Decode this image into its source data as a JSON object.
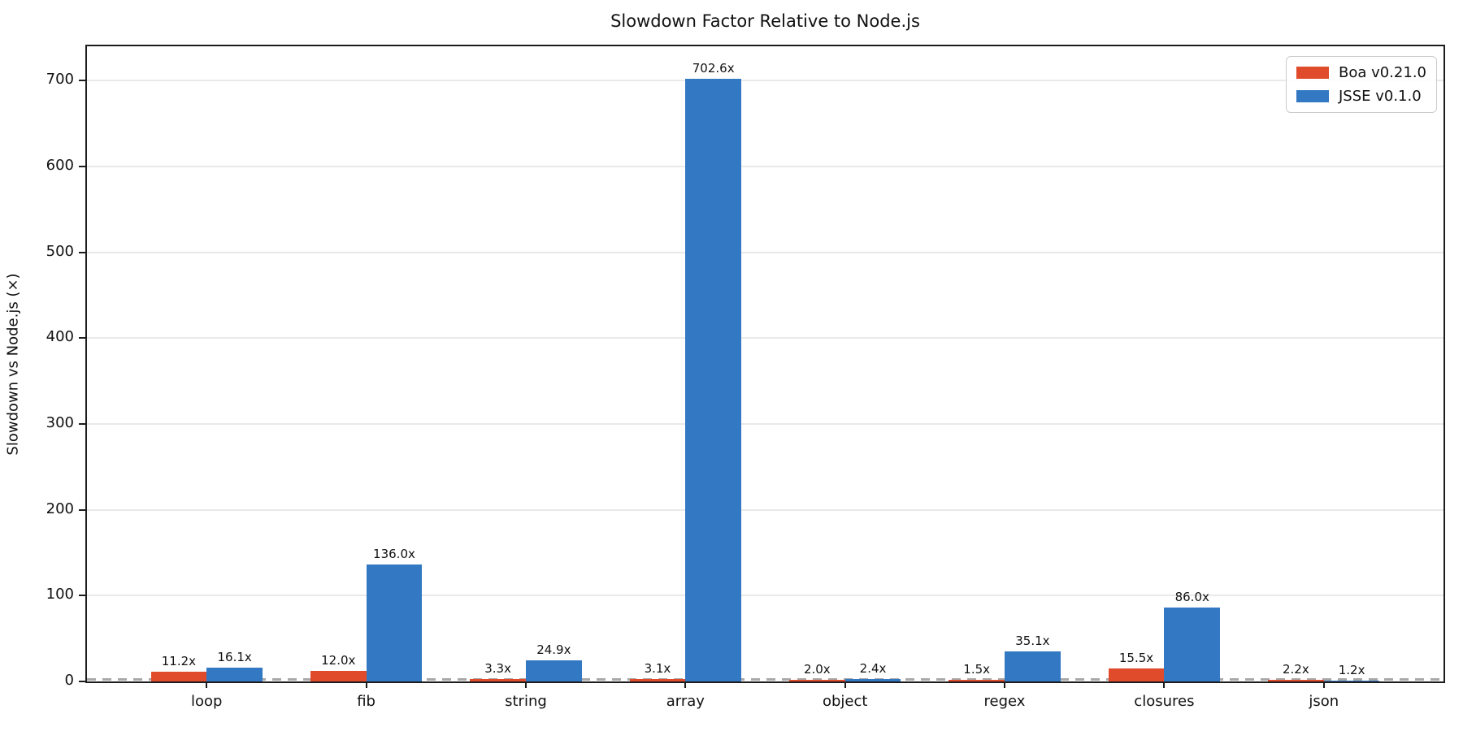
{
  "chart": {
    "title": "Slowdown Factor Relative to Node.js",
    "ylabel": "Slowdown vs Node.js (×)"
  },
  "chart_data": {
    "type": "bar",
    "title": "Slowdown Factor Relative to Node.js",
    "xlabel": "",
    "ylabel": "Slowdown vs Node.js (×)",
    "categories": [
      "loop",
      "fib",
      "string",
      "array",
      "object",
      "regex",
      "closures",
      "json"
    ],
    "series": [
      {
        "name": "Boa v0.21.0",
        "color": "#e04c2b",
        "values": [
          11.2,
          12.0,
          3.3,
          3.1,
          2.0,
          1.5,
          15.5,
          2.2
        ],
        "labels": [
          "11.2x",
          "12.0x",
          "3.3x",
          "3.1x",
          "2.0x",
          "1.5x",
          "15.5x",
          "2.2x"
        ]
      },
      {
        "name": "JSSE v0.1.0",
        "color": "#3378c2",
        "values": [
          16.1,
          136.0,
          24.9,
          702.6,
          2.4,
          35.1,
          86.0,
          1.2
        ],
        "labels": [
          "16.1x",
          "136.0x",
          "24.9x",
          "702.6x",
          "2.4x",
          "35.1x",
          "86.0x",
          "1.2x"
        ]
      }
    ],
    "yticks": [
      0,
      100,
      200,
      300,
      400,
      500,
      600,
      700
    ],
    "ylim": [
      0,
      740
    ],
    "bar_width_ratio": 0.35,
    "x_margin_units": 0.75,
    "grid": "horizontal",
    "gridline_color": "#e9e9e9",
    "reference_line": {
      "y": 1,
      "style": "dashed",
      "color": "#a8a8a8"
    },
    "legend_position": "upper right"
  }
}
